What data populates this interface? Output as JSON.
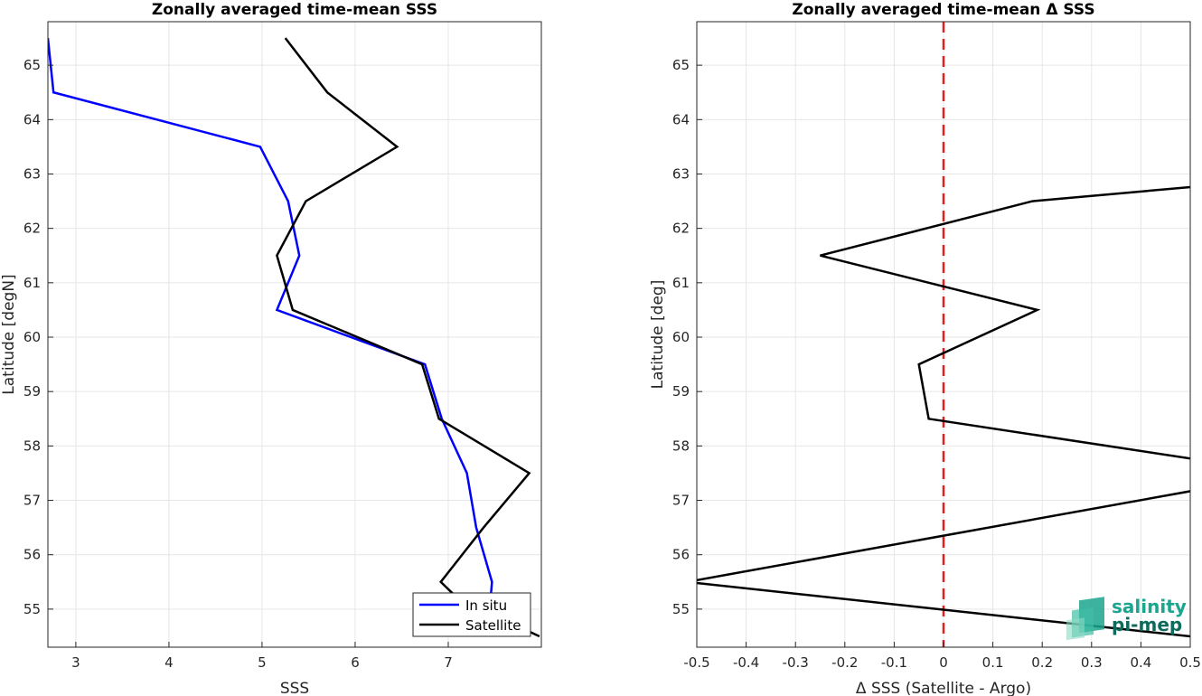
{
  "chart_data": [
    {
      "type": "line",
      "title": "Zonally averaged time-mean SSS",
      "xlabel": "SSS",
      "ylabel": "Latitude [degN]",
      "xlim": [
        2.7,
        8.0
      ],
      "ylim": [
        54.3,
        65.8
      ],
      "xticks": [
        3,
        4,
        5,
        6,
        7
      ],
      "yticks": [
        55,
        56,
        57,
        58,
        59,
        60,
        61,
        62,
        63,
        64,
        65
      ],
      "grid": true,
      "legend": "bottom-right",
      "series": [
        {
          "name": "In situ",
          "color": "#0000ff",
          "points": [
            [
              2.7,
              65.5
            ],
            [
              2.76,
              64.5
            ],
            [
              4.98,
              63.5
            ],
            [
              5.28,
              62.5
            ],
            [
              5.4,
              61.5
            ],
            [
              5.16,
              60.5
            ],
            [
              6.75,
              59.5
            ],
            [
              6.93,
              58.5
            ],
            [
              7.2,
              57.5
            ],
            [
              7.3,
              56.5
            ],
            [
              7.47,
              55.5
            ],
            [
              7.45,
              55.1
            ]
          ]
        },
        {
          "name": "Satellite",
          "color": "#000000",
          "points": [
            [
              5.25,
              65.5
            ],
            [
              5.7,
              64.5
            ],
            [
              6.45,
              63.5
            ],
            [
              5.47,
              62.5
            ],
            [
              5.16,
              61.5
            ],
            [
              5.33,
              60.5
            ],
            [
              6.72,
              59.5
            ],
            [
              6.9,
              58.5
            ],
            [
              7.87,
              57.5
            ],
            [
              7.38,
              56.5
            ],
            [
              6.92,
              55.5
            ],
            [
              7.1,
              55.2
            ],
            [
              7.98,
              54.5
            ]
          ]
        }
      ]
    },
    {
      "type": "line",
      "title": "Zonally averaged time-mean Δ SSS",
      "xlabel": "Δ SSS (Satellite - Argo)",
      "ylabel": "Latitude [deg]",
      "xlim": [
        -0.5,
        0.5
      ],
      "ylim": [
        54.3,
        65.8
      ],
      "xticks": [
        -0.5,
        -0.4,
        -0.3,
        -0.2,
        -0.1,
        0,
        0.1,
        0.2,
        0.3,
        0.4,
        0.5
      ],
      "yticks": [
        55,
        56,
        57,
        58,
        59,
        60,
        61,
        62,
        63,
        64,
        65
      ],
      "grid": true,
      "reference_line": {
        "x": 0,
        "color": "#e02020",
        "style": "dashed"
      },
      "series": [
        {
          "color": "#000000",
          "points": [
            [
              0.55,
              62.8
            ],
            [
              0.18,
              62.5
            ],
            [
              -0.25,
              61.5
            ],
            [
              0.19,
              60.5
            ],
            [
              -0.05,
              59.5
            ],
            [
              -0.03,
              58.5
            ],
            [
              0.55,
              57.7
            ],
            [
              0.55,
              57.25
            ],
            [
              -0.52,
              55.5
            ],
            [
              0.55,
              54.45
            ]
          ]
        }
      ]
    }
  ],
  "logo": {
    "line1": "salinity",
    "line2": "pi-mep",
    "color1": "#1aa58e",
    "color2": "#0d6b5c"
  }
}
